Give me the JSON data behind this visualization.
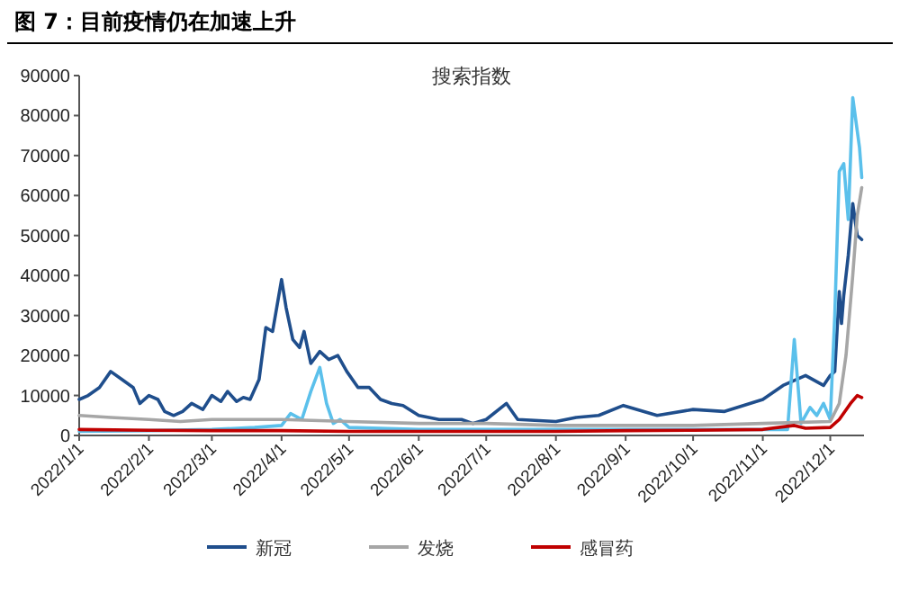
{
  "chart_data": {
    "type": "line",
    "title": "图 7：目前疫情仍在加速上升",
    "subtitle": "搜索指数",
    "xlim": [
      "2022-01-01",
      "2022-12-16"
    ],
    "xticks": [
      {
        "value": "2022-01-01",
        "label": "2022/1/1"
      },
      {
        "value": "2022-02-01",
        "label": "2022/2/1"
      },
      {
        "value": "2022-03-01",
        "label": "2022/3/1"
      },
      {
        "value": "2022-04-01",
        "label": "2022/4/1"
      },
      {
        "value": "2022-05-01",
        "label": "2022/5/1"
      },
      {
        "value": "2022-06-01",
        "label": "2022/6/1"
      },
      {
        "value": "2022-07-01",
        "label": "2022/7/1"
      },
      {
        "value": "2022-08-01",
        "label": "2022/8/1"
      },
      {
        "value": "2022-09-01",
        "label": "2022/9/1"
      },
      {
        "value": "2022-10-01",
        "label": "2022/10/1"
      },
      {
        "value": "2022-11-01",
        "label": "2022/11/1"
      },
      {
        "value": "2022-12-01",
        "label": "2022/12/1"
      }
    ],
    "ylim": [
      0,
      90000
    ],
    "yticks": [
      0,
      10000,
      20000,
      30000,
      40000,
      50000,
      60000,
      70000,
      80000,
      90000
    ],
    "grid": false,
    "legend": "bottom",
    "marker": "none",
    "line_style": "solid",
    "series": [
      {
        "name": "新冠",
        "color": "#1f4e8c",
        "x": [
          "2022-01-01",
          "2022-01-05",
          "2022-01-10",
          "2022-01-15",
          "2022-01-20",
          "2022-01-25",
          "2022-01-28",
          "2022-02-01",
          "2022-02-05",
          "2022-02-08",
          "2022-02-12",
          "2022-02-16",
          "2022-02-20",
          "2022-02-25",
          "2022-03-01",
          "2022-03-05",
          "2022-03-08",
          "2022-03-12",
          "2022-03-15",
          "2022-03-18",
          "2022-03-22",
          "2022-03-25",
          "2022-03-28",
          "2022-04-01",
          "2022-04-03",
          "2022-04-06",
          "2022-04-09",
          "2022-04-11",
          "2022-04-14",
          "2022-04-18",
          "2022-04-22",
          "2022-04-26",
          "2022-04-30",
          "2022-05-05",
          "2022-05-10",
          "2022-05-15",
          "2022-05-20",
          "2022-05-25",
          "2022-06-01",
          "2022-06-10",
          "2022-06-20",
          "2022-06-25",
          "2022-07-01",
          "2022-07-10",
          "2022-07-15",
          "2022-08-01",
          "2022-08-10",
          "2022-08-20",
          "2022-08-31",
          "2022-09-15",
          "2022-10-01",
          "2022-10-15",
          "2022-11-01",
          "2022-11-10",
          "2022-11-20",
          "2022-11-28",
          "2022-12-01",
          "2022-12-03",
          "2022-12-05",
          "2022-12-06",
          "2022-12-07",
          "2022-12-09",
          "2022-12-11",
          "2022-12-13",
          "2022-12-15"
        ],
        "values": [
          9000,
          10000,
          12000,
          16000,
          14000,
          12000,
          8000,
          10000,
          9000,
          6000,
          5000,
          6000,
          8000,
          6500,
          10000,
          8500,
          11000,
          8500,
          9500,
          9000,
          14000,
          27000,
          26000,
          39000,
          32000,
          24000,
          22000,
          26000,
          18000,
          21000,
          19000,
          20000,
          16000,
          12000,
          12000,
          9000,
          8000,
          7500,
          5000,
          4000,
          4000,
          3000,
          4000,
          8000,
          4000,
          3500,
          4500,
          5000,
          7500,
          5000,
          6500,
          6000,
          9000,
          12500,
          15000,
          12500,
          15000,
          16000,
          36000,
          28000,
          35000,
          45000,
          58000,
          50000,
          49000
        ]
      },
      {
        "color": "#5bc0eb",
        "x": [
          "2022-01-01",
          "2022-02-01",
          "2022-03-01",
          "2022-03-20",
          "2022-04-01",
          "2022-04-05",
          "2022-04-10",
          "2022-04-14",
          "2022-04-18",
          "2022-04-21",
          "2022-04-24",
          "2022-04-27",
          "2022-05-01",
          "2022-06-01",
          "2022-07-01",
          "2022-08-01",
          "2022-09-01",
          "2022-10-01",
          "2022-11-01",
          "2022-11-12",
          "2022-11-15",
          "2022-11-18",
          "2022-11-22",
          "2022-11-25",
          "2022-11-28",
          "2022-12-01",
          "2022-12-03",
          "2022-12-05",
          "2022-12-07",
          "2022-12-09",
          "2022-12-11",
          "2022-12-14",
          "2022-12-15"
        ],
        "values": [
          1000,
          1200,
          1500,
          2000,
          2500,
          5500,
          4000,
          11000,
          17000,
          8000,
          3000,
          4000,
          2000,
          1500,
          1500,
          1500,
          1500,
          1500,
          1500,
          1500,
          24000,
          3000,
          7000,
          5000,
          8000,
          4000,
          30000,
          66000,
          68000,
          54000,
          84500,
          72000,
          64500
        ]
      },
      {
        "name": "发烧",
        "color": "#a6a6a6",
        "x": [
          "2022-01-01",
          "2022-01-15",
          "2022-02-01",
          "2022-02-15",
          "2022-03-01",
          "2022-04-01",
          "2022-05-01",
          "2022-06-01",
          "2022-07-01",
          "2022-08-01",
          "2022-09-01",
          "2022-10-01",
          "2022-11-01",
          "2022-12-01",
          "2022-12-05",
          "2022-12-08",
          "2022-12-11",
          "2022-12-13",
          "2022-12-15"
        ],
        "values": [
          5000,
          4500,
          4000,
          3500,
          4000,
          4000,
          3500,
          3000,
          3000,
          2500,
          2500,
          2500,
          3000,
          3500,
          8000,
          20000,
          40000,
          55000,
          62000
        ]
      },
      {
        "name": "感冒药",
        "color": "#c00000",
        "x": [
          "2022-01-01",
          "2022-02-01",
          "2022-03-01",
          "2022-04-01",
          "2022-05-01",
          "2022-06-01",
          "2022-07-01",
          "2022-08-01",
          "2022-09-01",
          "2022-10-01",
          "2022-11-01",
          "2022-11-15",
          "2022-11-20",
          "2022-12-01",
          "2022-12-05",
          "2022-12-10",
          "2022-12-13",
          "2022-12-15"
        ],
        "values": [
          1500,
          1300,
          1200,
          1200,
          1000,
          1000,
          1000,
          1000,
          1200,
          1300,
          1500,
          2500,
          1800,
          2000,
          4000,
          8000,
          10000,
          9500
        ]
      }
    ]
  }
}
